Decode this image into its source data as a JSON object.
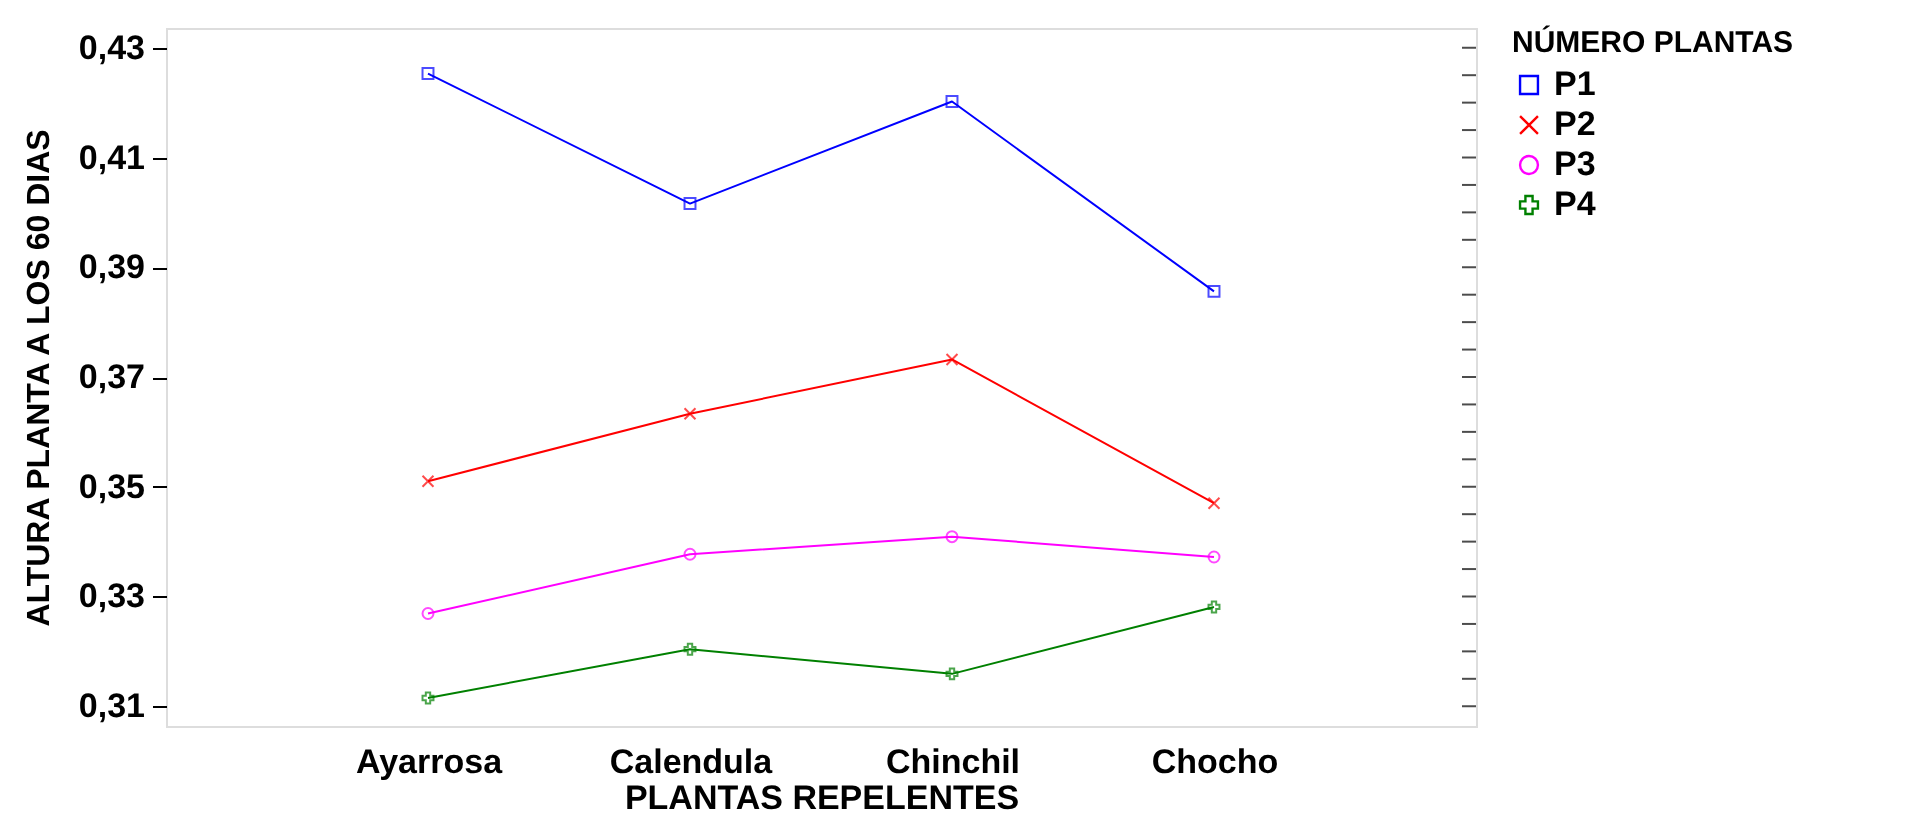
{
  "chart_data": {
    "type": "line",
    "xlabel": "PLANTAS REPELENTES",
    "ylabel": "ALTURA PLANTA A LOS 60 DIAS",
    "legend_title": "NÚMERO PLANTAS",
    "legend": "top right",
    "categories": [
      "Ayarrosa",
      "Calendula",
      "Chinchil",
      "Chocho"
    ],
    "series": [
      {
        "name": "P1",
        "color": "#0000ff",
        "marker": "square",
        "values": [
          0.4253,
          0.4016,
          0.4202,
          0.3856
        ]
      },
      {
        "name": "P2",
        "color": "#ff0000",
        "marker": "x",
        "values": [
          0.351,
          0.3633,
          0.3732,
          0.347
        ]
      },
      {
        "name": "P3",
        "color": "#ff00ff",
        "marker": "circle",
        "values": [
          0.3269,
          0.3377,
          0.3409,
          0.3372
        ]
      },
      {
        "name": "P4",
        "color": "#008000",
        "marker": "cross",
        "values": [
          0.3115,
          0.3204,
          0.3159,
          0.3281
        ]
      }
    ],
    "ylim": [
      0.3064,
      0.4336
    ],
    "yticks": [
      {
        "value": 0.31,
        "label": "0,31"
      },
      {
        "value": 0.315,
        "label": null
      },
      {
        "value": 0.32,
        "label": null
      },
      {
        "value": 0.325,
        "label": null
      },
      {
        "value": 0.33,
        "label": "0,33"
      },
      {
        "value": 0.335,
        "label": null
      },
      {
        "value": 0.34,
        "label": null
      },
      {
        "value": 0.345,
        "label": null
      },
      {
        "value": 0.35,
        "label": "0,35"
      },
      {
        "value": 0.355,
        "label": null
      },
      {
        "value": 0.36,
        "label": null
      },
      {
        "value": 0.365,
        "label": null
      },
      {
        "value": 0.37,
        "label": "0,37"
      },
      {
        "value": 0.375,
        "label": null
      },
      {
        "value": 0.38,
        "label": null
      },
      {
        "value": 0.385,
        "label": null
      },
      {
        "value": 0.39,
        "label": "0,39"
      },
      {
        "value": 0.395,
        "label": null
      },
      {
        "value": 0.4,
        "label": null
      },
      {
        "value": 0.405,
        "label": null
      },
      {
        "value": 0.41,
        "label": "0,41"
      },
      {
        "value": 0.415,
        "label": null
      },
      {
        "value": 0.42,
        "label": null
      },
      {
        "value": 0.425,
        "label": null
      },
      {
        "value": 0.43,
        "label": "0,43"
      }
    ],
    "grid": false
  }
}
